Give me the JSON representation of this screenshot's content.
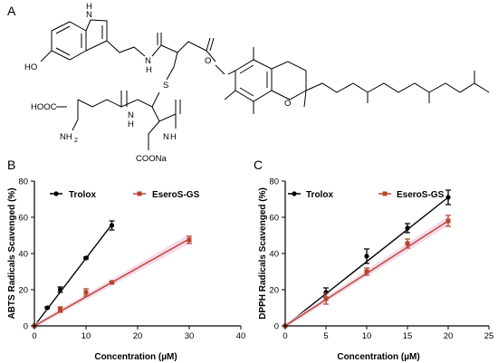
{
  "panels": {
    "a": "A",
    "b": "B",
    "c": "C"
  },
  "structure": {
    "labels": {
      "nh_indole": "H",
      "nh_indole_n": "N",
      "ho": "HO",
      "nh_amide1": "N",
      "nh_amide1_h": "H",
      "s": "S",
      "o_ring": "O",
      "hooc": "HOOC",
      "nh2": "NH",
      "nh2_sub": "2",
      "nh_amide2": "N",
      "nh_amide2_h": "H",
      "nh_amide3": "N",
      "nh_amide3_h": "H",
      "coona": "COONa",
      "o_ester": "O"
    }
  },
  "colors": {
    "trolox": "#000000",
    "eseros": "#b5452c",
    "band": "#f4cfe6"
  },
  "chart_data": [
    {
      "type": "line",
      "panel": "B",
      "xlabel": "Concentration (µM)",
      "ylabel": "ABTS Radicals Scavenged (%)",
      "xlim": [
        0,
        40
      ],
      "ylim": [
        0,
        80
      ],
      "xticks": [
        "0",
        "10",
        "20",
        "30",
        "40"
      ],
      "yticks": [
        "0",
        "20",
        "40",
        "60",
        "80"
      ],
      "legend": "top-left",
      "series": [
        {
          "name": "Trolox",
          "color": "#000000",
          "marker": "circle",
          "points": [
            [
              0,
              0
            ],
            [
              2.5,
              10
            ],
            [
              5,
              20
            ],
            [
              10,
              37.5
            ],
            [
              15,
              55.5
            ]
          ],
          "errors": [
            0,
            0.5,
            1.5,
            0.5,
            2.5
          ],
          "fit": [
            [
              0,
              0
            ],
            [
              15,
              56
            ]
          ]
        },
        {
          "name": "EseroS-GS",
          "color": "#b5452c",
          "marker": "square",
          "points": [
            [
              0,
              0
            ],
            [
              5,
              9
            ],
            [
              10,
              18.5
            ],
            [
              15,
              24
            ],
            [
              30,
              47.5
            ]
          ],
          "errors": [
            0,
            1.5,
            2,
            0.5,
            2
          ],
          "fit": [
            [
              0,
              0
            ],
            [
              30,
              48
            ]
          ]
        }
      ]
    },
    {
      "type": "line",
      "panel": "C",
      "xlabel": "Concentration (µM)",
      "ylabel": "DPPH Radicals Scavenged (%)",
      "xlim": [
        0,
        25
      ],
      "ylim": [
        0,
        80
      ],
      "xticks": [
        "0",
        "5",
        "10",
        "15",
        "20",
        "25"
      ],
      "yticks": [
        "0",
        "20",
        "40",
        "60",
        "80"
      ],
      "legend": "top-left",
      "series": [
        {
          "name": "Trolox",
          "color": "#000000",
          "marker": "circle",
          "points": [
            [
              0,
              0
            ],
            [
              5,
              18.5
            ],
            [
              10,
              38.5
            ],
            [
              15,
              54
            ],
            [
              20,
              71
            ]
          ],
          "errors": [
            0,
            2.5,
            4,
            2.5,
            4
          ],
          "fit": [
            [
              0,
              0
            ],
            [
              20,
              71
            ]
          ]
        },
        {
          "name": "EseroS-GS",
          "color": "#b5452c",
          "marker": "square",
          "points": [
            [
              0,
              0
            ],
            [
              5,
              15
            ],
            [
              10,
              30
            ],
            [
              15,
              45.5
            ],
            [
              20,
              58
            ]
          ],
          "errors": [
            0,
            3,
            2,
            2.5,
            3
          ],
          "fit": [
            [
              0,
              0
            ],
            [
              20,
              58
            ]
          ]
        }
      ]
    }
  ]
}
